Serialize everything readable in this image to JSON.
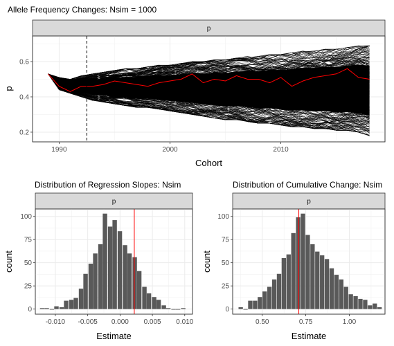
{
  "chart_data": [
    {
      "type": "line",
      "title": "Allele Frequency Changes: Nsim = 1000",
      "facet": "p",
      "xlabel": "Cohort",
      "ylabel": "p",
      "xlim": [
        1987.6,
        2019.4
      ],
      "ylim": [
        0.145,
        0.745
      ],
      "x_ticks": [
        1990,
        2000,
        2010
      ],
      "y_ticks": [
        0.2,
        0.4,
        0.6
      ],
      "x_tick_labels": [
        "1990",
        "2000",
        "2010"
      ],
      "y_tick_labels": [
        "0.2",
        "0.4",
        "0.6"
      ],
      "grid": true,
      "vline": 1992.5,
      "n_simulations": 1000,
      "envelope": {
        "x": [
          1989,
          1990,
          1991,
          1992,
          1993,
          1994,
          1995,
          1996,
          1997,
          1998,
          1999,
          2000,
          2001,
          2002,
          2003,
          2004,
          2005,
          2006,
          2007,
          2008,
          2009,
          2010,
          2011,
          2012,
          2013,
          2014,
          2015,
          2016,
          2017,
          2018
        ],
        "upper": [
          0.53,
          0.51,
          0.5,
          0.52,
          0.53,
          0.54,
          0.55,
          0.56,
          0.56,
          0.57,
          0.58,
          0.58,
          0.59,
          0.6,
          0.6,
          0.61,
          0.61,
          0.62,
          0.63,
          0.63,
          0.64,
          0.64,
          0.65,
          0.66,
          0.66,
          0.67,
          0.67,
          0.68,
          0.69,
          0.69
        ],
        "lower": [
          0.53,
          0.44,
          0.42,
          0.4,
          0.38,
          0.37,
          0.36,
          0.35,
          0.34,
          0.34,
          0.33,
          0.32,
          0.31,
          0.3,
          0.29,
          0.28,
          0.27,
          0.27,
          0.26,
          0.25,
          0.25,
          0.24,
          0.23,
          0.23,
          0.22,
          0.22,
          0.21,
          0.21,
          0.2,
          0.18
        ]
      },
      "highlight_series": {
        "color": "#ff0000",
        "x": [
          1989,
          1990,
          1991,
          1992,
          1993,
          1994,
          1995,
          1996,
          1997,
          1998,
          1999,
          2000,
          2001,
          2002,
          2003,
          2004,
          2005,
          2006,
          2007,
          2008,
          2009,
          2010,
          2011,
          2012,
          2013,
          2014,
          2015,
          2016,
          2017,
          2018
        ],
        "y": [
          0.53,
          0.46,
          0.43,
          0.46,
          0.46,
          0.47,
          0.49,
          0.48,
          0.47,
          0.46,
          0.48,
          0.49,
          0.5,
          0.53,
          0.48,
          0.5,
          0.49,
          0.52,
          0.5,
          0.5,
          0.48,
          0.51,
          0.46,
          0.49,
          0.51,
          0.52,
          0.53,
          0.56,
          0.51,
          0.5
        ]
      }
    },
    {
      "type": "bar",
      "title": "Distribution of Regression Slopes: Nsim",
      "facet": "p",
      "xlabel": "Estimate",
      "ylabel": "count",
      "xlim": [
        -0.0131,
        0.0112
      ],
      "ylim": [
        -5.5,
        108
      ],
      "x_ticks": [
        -0.01,
        -0.005,
        0.0,
        0.005,
        0.01
      ],
      "y_ticks": [
        0,
        25,
        50,
        75,
        100
      ],
      "x_tick_labels": [
        "-0.010",
        "-0.005",
        "0.000",
        "0.005",
        "0.010"
      ],
      "y_tick_labels": [
        "0",
        "25",
        "50",
        "75",
        "100"
      ],
      "grid": true,
      "bin_width": 0.00075,
      "bin_centers": [
        -0.012,
        -0.0113,
        -0.0105,
        -0.0098,
        -0.009,
        -0.0083,
        -0.0075,
        -0.0068,
        -0.006,
        -0.0053,
        -0.0045,
        -0.0038,
        -0.003,
        -0.0023,
        -0.0015,
        -0.0008,
        0.0,
        0.0008,
        0.0015,
        0.0023,
        0.003,
        0.0038,
        0.0045,
        0.0053,
        0.006,
        0.0068,
        0.0075,
        0.0083,
        0.009,
        0.0098
      ],
      "counts": [
        1,
        1,
        0,
        3,
        2,
        9,
        10,
        12,
        22,
        38,
        49,
        60,
        70,
        103,
        89,
        96,
        84,
        69,
        60,
        56,
        41,
        24,
        17,
        13,
        10,
        4,
        1,
        0,
        0,
        1
      ],
      "vline": {
        "value": 0.0022,
        "color": "#ff0000"
      }
    },
    {
      "type": "bar",
      "title": "Distribution of Cumulative Change: Nsim",
      "facet": "p",
      "xlabel": "Estimate",
      "ylabel": "count",
      "xlim": [
        0.33,
        1.205
      ],
      "ylim": [
        -5.5,
        108
      ],
      "x_ticks": [
        0.5,
        0.75,
        1.0
      ],
      "y_ticks": [
        0,
        25,
        50,
        75,
        100
      ],
      "x_tick_labels": [
        "0.50",
        "0.75",
        "1.00"
      ],
      "y_tick_labels": [
        "0",
        "25",
        "50",
        "75",
        "100"
      ],
      "grid": true,
      "bin_width": 0.0275,
      "bin_centers": [
        0.3775,
        0.405,
        0.4325,
        0.46,
        0.4875,
        0.515,
        0.5425,
        0.57,
        0.5975,
        0.625,
        0.6525,
        0.68,
        0.7075,
        0.735,
        0.7625,
        0.79,
        0.8175,
        0.845,
        0.8725,
        0.9,
        0.9275,
        0.955,
        0.9825,
        1.01,
        1.0375,
        1.065,
        1.0925,
        1.12,
        1.1475,
        1.175
      ],
      "counts": [
        2,
        0,
        9,
        9,
        13,
        19,
        24,
        32,
        38,
        55,
        59,
        82,
        99,
        103,
        80,
        70,
        62,
        58,
        54,
        44,
        37,
        32,
        24,
        16,
        14,
        11,
        10,
        4,
        6,
        2
      ],
      "vline": {
        "value": 0.71,
        "color": "#ff0000"
      }
    }
  ]
}
